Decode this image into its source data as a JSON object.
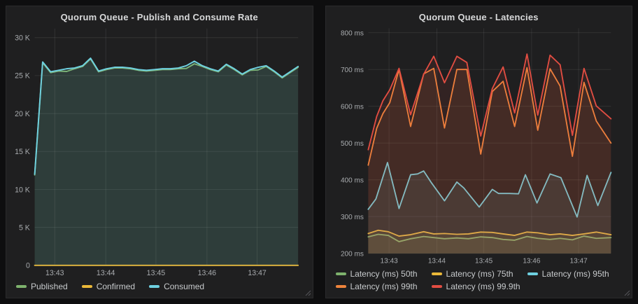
{
  "chart_data": [
    {
      "type": "area",
      "title": "Quorum Queue - Publish and Consume Rate",
      "grid": true,
      "legend_position": "bottom-left",
      "y_axis": {
        "min": 0,
        "max": 31200,
        "ticks": [
          {
            "v": 0,
            "label": "0"
          },
          {
            "v": 5000,
            "label": "5 K"
          },
          {
            "v": 10000,
            "label": "10 K"
          },
          {
            "v": 15000,
            "label": "15 K"
          },
          {
            "v": 20000,
            "label": "20 K"
          },
          {
            "v": 25000,
            "label": "25 K"
          },
          {
            "v": 30000,
            "label": "30 K"
          }
        ]
      },
      "x_axis": {
        "t_min": 0,
        "t_max": 315,
        "ticks": [
          {
            "t": 24,
            "label": "13:43"
          },
          {
            "t": 85,
            "label": "13:44"
          },
          {
            "t": 145,
            "label": "13:45"
          },
          {
            "t": 206,
            "label": "13:46"
          },
          {
            "t": 266,
            "label": "13:47"
          }
        ]
      },
      "series": [
        {
          "name": "Published",
          "color": "#7EB26D",
          "fill_opacity": 0.1,
          "values": [
            11900,
            26700,
            25400,
            25600,
            25550,
            25900,
            26200,
            27200,
            25500,
            25800,
            26000,
            26000,
            25900,
            25700,
            25600,
            25700,
            25800,
            25800,
            25900,
            25950,
            26550,
            26200,
            25800,
            25500,
            26400,
            25800,
            25100,
            25700,
            25750,
            26200,
            25500,
            24700,
            25400,
            26100
          ]
        },
        {
          "name": "Confirmed",
          "color": "#EAB839",
          "fill_opacity": 0,
          "values": [
            0,
            0,
            0,
            0,
            0,
            0,
            0,
            0,
            0,
            0,
            0,
            0,
            0,
            0,
            0,
            0,
            0,
            0,
            0,
            0,
            0,
            0,
            0,
            0,
            0,
            0,
            0,
            0,
            0,
            0,
            0,
            0,
            0,
            0
          ]
        },
        {
          "name": "Consumed",
          "color": "#6ED0E0",
          "fill_opacity": 0.1,
          "values": [
            12000,
            26800,
            25500,
            25700,
            25900,
            26000,
            26300,
            27300,
            25600,
            25900,
            26100,
            26100,
            26000,
            25800,
            25700,
            25800,
            25900,
            25900,
            26000,
            26300,
            26900,
            26300,
            25900,
            25600,
            26500,
            25900,
            25200,
            25800,
            26100,
            26300,
            25600,
            24800,
            25500,
            26200
          ]
        }
      ]
    },
    {
      "type": "line",
      "title": "Quorum Queue - Latencies",
      "grid": true,
      "legend_position": "bottom-left",
      "y_axis": {
        "min": 200,
        "max": 812,
        "ticks": [
          {
            "v": 200,
            "label": "200 ms"
          },
          {
            "v": 300,
            "label": "300 ms"
          },
          {
            "v": 400,
            "label": "400 ms"
          },
          {
            "v": 500,
            "label": "500 ms"
          },
          {
            "v": 600,
            "label": "600 ms"
          },
          {
            "v": 700,
            "label": "700 ms"
          },
          {
            "v": 800,
            "label": "800 ms"
          }
        ]
      },
      "x_axis": {
        "t_min": 0,
        "t_max": 315,
        "ticks": [
          {
            "t": 27,
            "label": "13:43"
          },
          {
            "t": 89,
            "label": "13:44"
          },
          {
            "t": 150,
            "label": "13:45"
          },
          {
            "t": 212,
            "label": "13:46"
          },
          {
            "t": 273,
            "label": "13:47"
          }
        ]
      },
      "series": [
        {
          "name": "Latency (ms) 50th",
          "color": "#7EB26D",
          "fill_opacity": 0.1,
          "points": [
            [
              0,
              245
            ],
            [
              13,
              252
            ],
            [
              26,
              249
            ],
            [
              40,
              232
            ],
            [
              55,
              240
            ],
            [
              72,
              246
            ],
            [
              85,
              243
            ],
            [
              99,
              240
            ],
            [
              115,
              242
            ],
            [
              130,
              240
            ],
            [
              146,
              245
            ],
            [
              161,
              243
            ],
            [
              175,
              238
            ],
            [
              190,
              236
            ],
            [
              206,
              246
            ],
            [
              220,
              241
            ],
            [
              236,
              238
            ],
            [
              249,
              241
            ],
            [
              265,
              237
            ],
            [
              280,
              247
            ],
            [
              296,
              241
            ],
            [
              315,
              243
            ]
          ]
        },
        {
          "name": "Latency (ms) 75th",
          "color": "#EAB839",
          "fill_opacity": 0.1,
          "points": [
            [
              0,
              254
            ],
            [
              13,
              263
            ],
            [
              26,
              259
            ],
            [
              40,
              247
            ],
            [
              55,
              251
            ],
            [
              72,
              259
            ],
            [
              85,
              253
            ],
            [
              99,
              254
            ],
            [
              115,
              252
            ],
            [
              130,
              253
            ],
            [
              146,
              258
            ],
            [
              161,
              257
            ],
            [
              175,
              253
            ],
            [
              190,
              249
            ],
            [
              206,
              258
            ],
            [
              220,
              256
            ],
            [
              236,
              251
            ],
            [
              249,
              253
            ],
            [
              265,
              249
            ],
            [
              280,
              253
            ],
            [
              296,
              258
            ],
            [
              315,
              251
            ]
          ]
        },
        {
          "name": "Latency (ms) 95th",
          "color": "#6ED0E0",
          "fill_opacity": 0.1,
          "points": [
            [
              0,
              320
            ],
            [
              10,
              348
            ],
            [
              25,
              447
            ],
            [
              40,
              322
            ],
            [
              55,
              414
            ],
            [
              64,
              416
            ],
            [
              72,
              424
            ],
            [
              82,
              392
            ],
            [
              99,
              343
            ],
            [
              115,
              394
            ],
            [
              124,
              378
            ],
            [
              144,
              326
            ],
            [
              161,
              374
            ],
            [
              169,
              363
            ],
            [
              183,
              363
            ],
            [
              195,
              362
            ],
            [
              204,
              414
            ],
            [
              219,
              337
            ],
            [
              236,
              416
            ],
            [
              250,
              406
            ],
            [
              271,
              299
            ],
            [
              284,
              412
            ],
            [
              298,
              330
            ],
            [
              315,
              420
            ]
          ]
        },
        {
          "name": "Latency (ms) 99th",
          "color": "#EF843C",
          "fill_opacity": 0.1,
          "points": [
            [
              0,
              440
            ],
            [
              11,
              540
            ],
            [
              19,
              580
            ],
            [
              28,
              610
            ],
            [
              40,
              700
            ],
            [
              55,
              545
            ],
            [
              72,
              688
            ],
            [
              85,
              703
            ],
            [
              99,
              541
            ],
            [
              115,
              700
            ],
            [
              128,
              700
            ],
            [
              146,
              470
            ],
            [
              161,
              640
            ],
            [
              175,
              668
            ],
            [
              190,
              545
            ],
            [
              206,
              705
            ],
            [
              220,
              535
            ],
            [
              236,
              702
            ],
            [
              249,
              655
            ],
            [
              265,
              464
            ],
            [
              280,
              665
            ],
            [
              296,
              560
            ],
            [
              315,
              500
            ]
          ]
        },
        {
          "name": "Latency (ms) 99.9th",
          "color": "#E24D42",
          "fill_opacity": 0.1,
          "points": [
            [
              0,
              482
            ],
            [
              11,
              572
            ],
            [
              19,
              615
            ],
            [
              28,
              645
            ],
            [
              40,
              703
            ],
            [
              55,
              577
            ],
            [
              72,
              687
            ],
            [
              85,
              736
            ],
            [
              99,
              664
            ],
            [
              115,
              736
            ],
            [
              128,
              719
            ],
            [
              146,
              519
            ],
            [
              161,
              648
            ],
            [
              175,
              707
            ],
            [
              190,
              582
            ],
            [
              206,
              742
            ],
            [
              220,
              576
            ],
            [
              236,
              739
            ],
            [
              249,
              713
            ],
            [
              265,
              521
            ],
            [
              280,
              703
            ],
            [
              296,
              601
            ],
            [
              315,
              566
            ]
          ]
        }
      ]
    }
  ],
  "theme": {
    "page_bg": "#0e0e0f",
    "panel_bg": "#1f1f20",
    "grid_color": "rgba(255,255,255,0.09)",
    "title_color": "#d8d9da",
    "tick_color": "#a8abae",
    "legend_text_color": "#c7cacc"
  }
}
